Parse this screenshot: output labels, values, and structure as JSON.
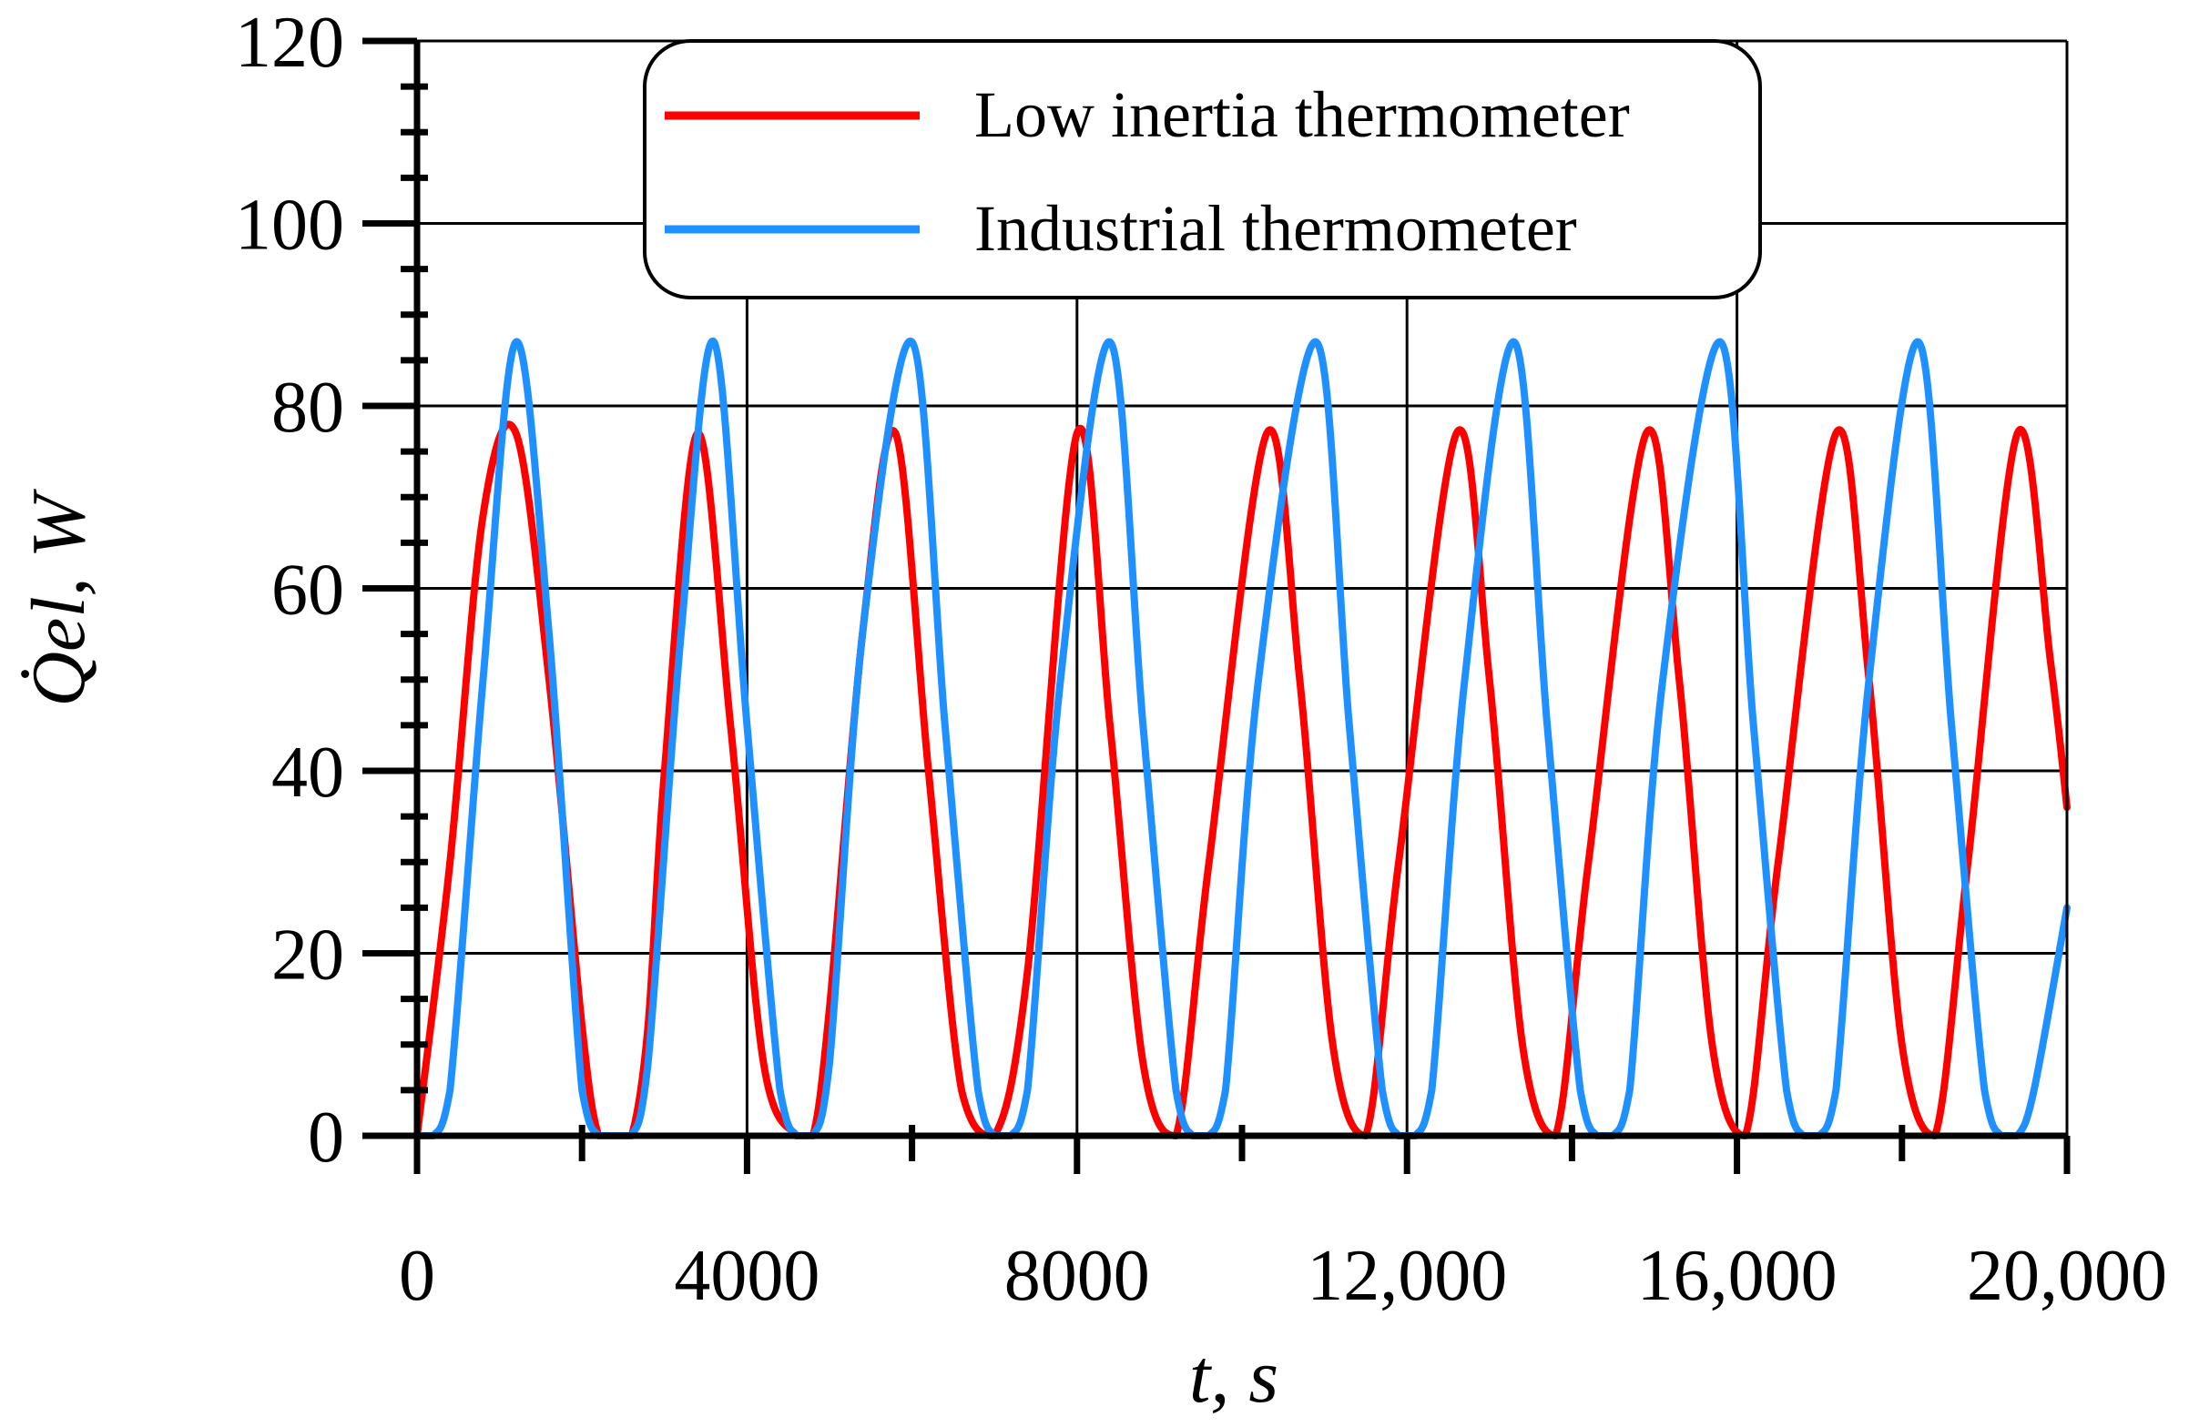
{
  "chart_data": {
    "type": "line",
    "title": "",
    "xlabel": "t, s",
    "ylabel": "Q̇el, W",
    "xlim": [
      0,
      20000
    ],
    "ylim": [
      0,
      120
    ],
    "x_ticks": [
      0,
      4000,
      8000,
      12000,
      16000,
      20000
    ],
    "x_tick_labels": [
      "0",
      "4000",
      "8000",
      "12,000",
      "16,000",
      "20,000"
    ],
    "y_ticks": [
      0,
      20,
      40,
      60,
      80,
      100,
      120
    ],
    "y_tick_labels": [
      "0",
      "20",
      "40",
      "60",
      "80",
      "100",
      "120"
    ],
    "grid": true,
    "legend_position": "top-center",
    "series": [
      {
        "name": "Low inertia thermometer",
        "color": "#ff0000",
        "x": [
          0,
          400,
          800,
          1200,
          1600,
          2000,
          2200,
          2400,
          2600,
          2800,
          3000,
          3400,
          3800,
          4200,
          4600,
          4800,
          5000,
          5400,
          5800,
          6200,
          6600,
          7000,
          7400,
          8000,
          8400,
          8800,
          9200,
          9600,
          10300,
          10700,
          11100,
          11500,
          11900,
          12600,
          13000,
          13400,
          13800,
          14200,
          14900,
          15300,
          15700,
          16100,
          16500,
          17200,
          17600,
          18000,
          18400,
          18800,
          19400,
          19800,
          20000
        ],
        "y": [
          0,
          30,
          68,
          77,
          50,
          12,
          0,
          0,
          0,
          12,
          40,
          77,
          45,
          8,
          0,
          0,
          14,
          55,
          77,
          40,
          5,
          0,
          18,
          77,
          45,
          8,
          0,
          30,
          77,
          50,
          10,
          0,
          30,
          77,
          50,
          10,
          0,
          30,
          77,
          50,
          10,
          0,
          30,
          77,
          50,
          10,
          0,
          30,
          77,
          52,
          36
        ]
      },
      {
        "name": "Industrial thermometer",
        "color": "#1e90ff",
        "x": [
          0,
          200,
          400,
          800,
          1200,
          1600,
          2000,
          2200,
          2400,
          2600,
          2800,
          3200,
          3600,
          4000,
          4400,
          4600,
          4800,
          5000,
          5400,
          6000,
          6400,
          6800,
          7000,
          7200,
          7400,
          7800,
          8400,
          8800,
          9200,
          9400,
          9600,
          9800,
          10200,
          10900,
          11300,
          11700,
          11900,
          12100,
          12300,
          12700,
          13300,
          13700,
          14100,
          14300,
          14500,
          14700,
          15100,
          15800,
          16200,
          16600,
          16800,
          17000,
          17200,
          17600,
          18200,
          18600,
          19000,
          19200,
          19400,
          19600,
          20000
        ],
        "y": [
          0,
          0,
          5,
          50,
          87,
          55,
          5,
          0,
          0,
          0,
          8,
          55,
          87,
          45,
          5,
          0,
          0,
          8,
          55,
          87,
          45,
          5,
          0,
          0,
          5,
          50,
          87,
          45,
          5,
          0,
          0,
          5,
          50,
          87,
          45,
          5,
          0,
          0,
          5,
          50,
          87,
          45,
          5,
          0,
          0,
          5,
          50,
          87,
          45,
          5,
          0,
          0,
          5,
          50,
          87,
          45,
          5,
          0,
          0,
          5,
          25
        ]
      }
    ]
  }
}
